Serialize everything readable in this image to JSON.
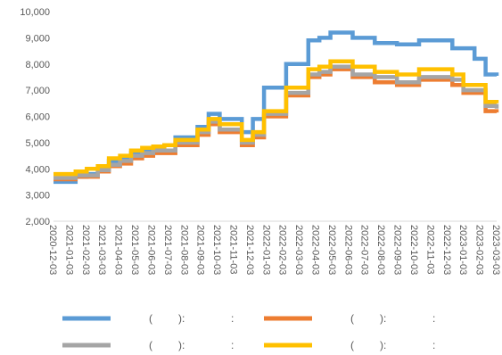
{
  "chart_data": {
    "type": "line",
    "title": "",
    "xlabel": "",
    "ylabel": "",
    "ylim": [
      2000,
      10000
    ],
    "yticks": [
      "2,000",
      "3,000",
      "4,000",
      "5,000",
      "6,000",
      "7,000",
      "8,000",
      "9,000",
      "10,000"
    ],
    "xticks": [
      "2020-12-03",
      "2021-01-03",
      "2021-02-03",
      "2021-03-03",
      "2021-04-03",
      "2021-05-03",
      "2021-06-03",
      "2021-07-03",
      "2021-08-03",
      "2021-09-03",
      "2021-10-03",
      "2021-11-03",
      "2021-12-03",
      "2022-01-03",
      "2022-02-03",
      "2022-03-03",
      "2022-04-03",
      "2022-05-03",
      "2022-06-03",
      "2022-07-03",
      "2022-08-03",
      "2022-09-03",
      "2022-10-03",
      "2022-11-03",
      "2022-12-03",
      "2023-01-03",
      "2023-02-03",
      "2023-03-03"
    ],
    "grid": false,
    "legend_position": "bottom",
    "series": [
      {
        "color": "#5B9BD5",
        "legend_parts": [
          "(",
          "):",
          ":"
        ],
        "values": [
          3500,
          3500,
          3700,
          3800,
          4000,
          4300,
          4400,
          4600,
          4700,
          4800,
          4900,
          5200,
          5200,
          5600,
          6100,
          5900,
          5900,
          5400,
          5900,
          7100,
          7100,
          8000,
          8000,
          8900,
          9000,
          9200,
          9200,
          9000,
          9000,
          8800,
          8800,
          8750,
          8750,
          8900,
          8900,
          8900,
          8600,
          8600,
          8200,
          7600,
          7550
        ]
      },
      {
        "color": "#ED7D31",
        "legend_parts": [
          "(",
          "):",
          ":"
        ],
        "values": [
          3600,
          3600,
          3700,
          3700,
          3900,
          4100,
          4200,
          4400,
          4500,
          4600,
          4600,
          4900,
          4900,
          5300,
          5700,
          5400,
          5400,
          4900,
          5200,
          6000,
          6000,
          6800,
          6800,
          7500,
          7600,
          7800,
          7800,
          7500,
          7500,
          7300,
          7300,
          7200,
          7200,
          7400,
          7400,
          7400,
          7200,
          6900,
          6900,
          6200,
          6150
        ]
      },
      {
        "color": "#A5A5A5",
        "legend_parts": [
          "(",
          "):",
          ":"
        ],
        "values": [
          3650,
          3650,
          3750,
          3750,
          3950,
          4150,
          4300,
          4500,
          4600,
          4700,
          4700,
          5000,
          5000,
          5400,
          5800,
          5500,
          5500,
          5000,
          5300,
          6100,
          6100,
          6900,
          6900,
          7600,
          7700,
          7900,
          7900,
          7600,
          7600,
          7500,
          7500,
          7300,
          7300,
          7500,
          7500,
          7500,
          7400,
          7000,
          7000,
          6400,
          6300
        ]
      },
      {
        "color": "#FFC000",
        "legend_parts": [
          "(",
          "):",
          ":"
        ],
        "values": [
          3800,
          3800,
          3900,
          4000,
          4100,
          4400,
          4500,
          4700,
          4800,
          4850,
          4900,
          5100,
          5100,
          5500,
          5900,
          5700,
          5700,
          5100,
          5400,
          6200,
          6200,
          7100,
          7100,
          7800,
          7900,
          8100,
          8100,
          7900,
          7900,
          7700,
          7700,
          7600,
          7600,
          7800,
          7800,
          7800,
          7600,
          7200,
          7200,
          6550,
          6500
        ]
      }
    ]
  }
}
